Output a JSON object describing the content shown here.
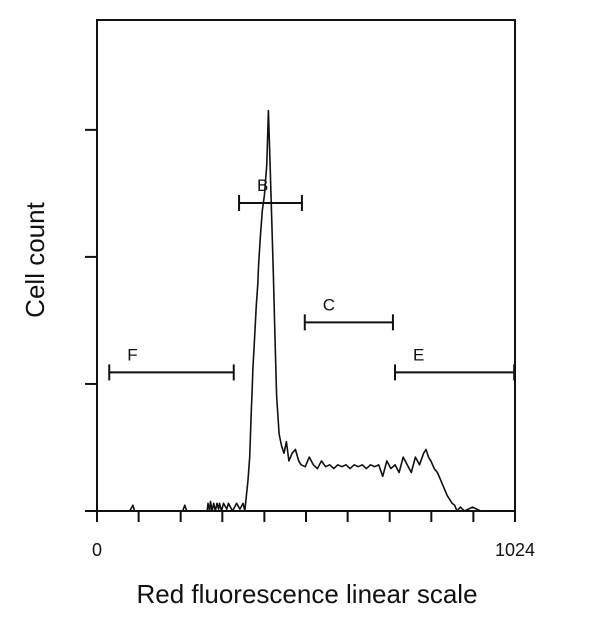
{
  "chart_data": {
    "type": "line",
    "title": "",
    "xlabel": "Red fluorescence linear scale",
    "ylabel": "Cell count",
    "xlim": [
      0,
      1024
    ],
    "ylim": [
      0,
      100
    ],
    "x_tick_labels": [
      {
        "value": 0,
        "label": "0"
      },
      {
        "value": 1024,
        "label": "1024"
      }
    ],
    "x_minor_ticks": [
      0,
      102,
      205,
      307,
      410,
      512,
      614,
      717,
      819,
      922,
      1024
    ],
    "y_ticks": [
      0,
      33,
      66,
      99
    ],
    "grid": false,
    "legend": "none",
    "series": [
      {
        "x": [
          0,
          80,
          88,
          92,
          100,
          210,
          215,
          220,
          270,
          272,
          276,
          278,
          282,
          286,
          290,
          294,
          298,
          300,
          305,
          310,
          318,
          322,
          332,
          342,
          350,
          358,
          362,
          366,
          370,
          374,
          376,
          378,
          380,
          382,
          386,
          390,
          394,
          396,
          400,
          405,
          410,
          416,
          420,
          424,
          428,
          432,
          436,
          440,
          446,
          452,
          458,
          464,
          470,
          478,
          486,
          494,
          500,
          510,
          520,
          530,
          540,
          550,
          560,
          570,
          580,
          590,
          600,
          610,
          620,
          630,
          640,
          650,
          660,
          670,
          680,
          690,
          700,
          710,
          720,
          730,
          740,
          750,
          760,
          770,
          780,
          790,
          800,
          806,
          812,
          818,
          826,
          834,
          842,
          850,
          858,
          864,
          870,
          876,
          882,
          890,
          900,
          920,
          940,
          980,
          1024
        ],
        "y": [
          0,
          0,
          1.5,
          0,
          0,
          0,
          1.5,
          0,
          0,
          2,
          0,
          2.5,
          0,
          2,
          0,
          2,
          0.5,
          2,
          0,
          2,
          0.5,
          2,
          0,
          2,
          0.5,
          2,
          0,
          4,
          8,
          14,
          20,
          26,
          31,
          37,
          45,
          53,
          59,
          64,
          71,
          78,
          82,
          90,
          104,
          90,
          76,
          62,
          45,
          30,
          20,
          17,
          15,
          18,
          13,
          15,
          16,
          13,
          12,
          11.5,
          14,
          12,
          11,
          13,
          11.5,
          12,
          11,
          12,
          11.5,
          12,
          11,
          12,
          11.5,
          12,
          11,
          12,
          11.5,
          12,
          9,
          13,
          11,
          12,
          10,
          14,
          12,
          10,
          14,
          12,
          15,
          16,
          14,
          13,
          11,
          10,
          8,
          6,
          4,
          3,
          2,
          1.5,
          0,
          1,
          0,
          1,
          0,
          0,
          0
        ]
      }
    ],
    "gates": [
      {
        "label": "F",
        "start": 30,
        "end": 335,
        "level": 36
      },
      {
        "label": "B",
        "start": 348,
        "end": 502,
        "level": 80
      },
      {
        "label": "C",
        "start": 509,
        "end": 725,
        "level": 49
      },
      {
        "label": "E",
        "start": 730,
        "end": 1022,
        "level": 36
      }
    ]
  },
  "colors": {
    "ink": "#111111",
    "background": "#ffffff"
  }
}
